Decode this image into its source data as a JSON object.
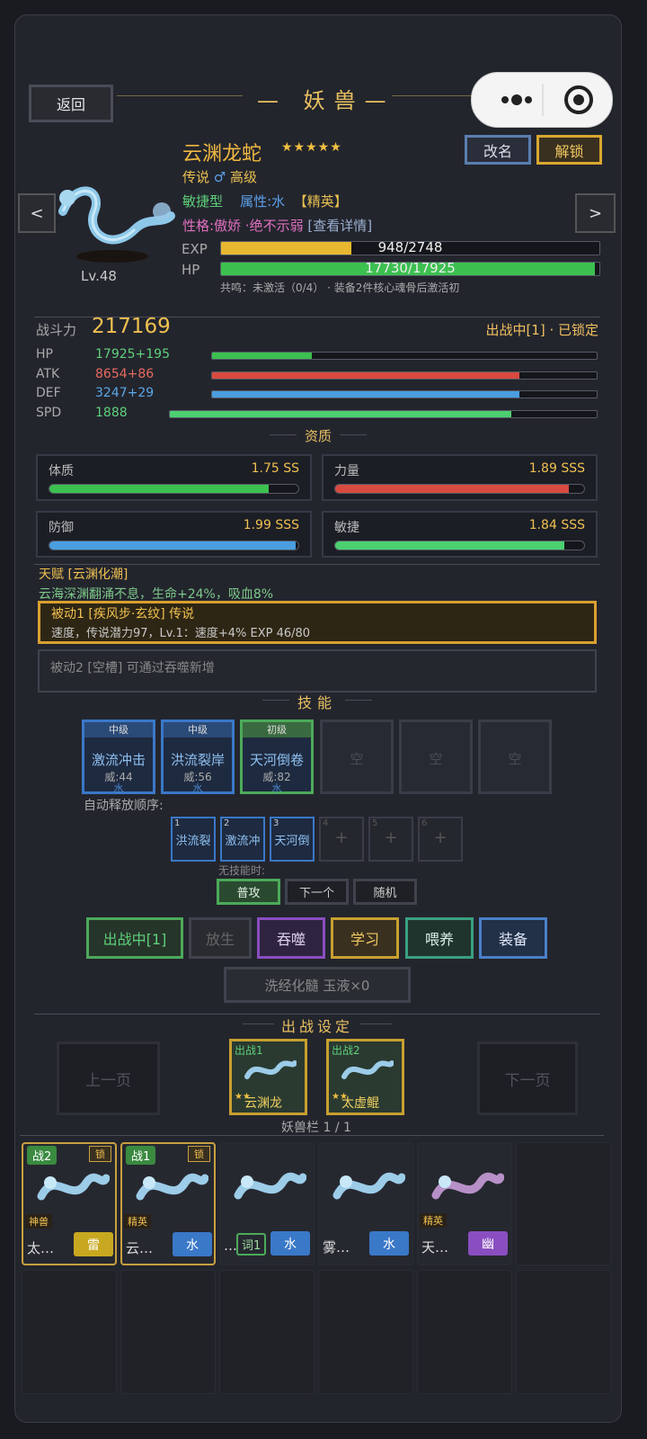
{
  "header": {
    "back": "返回",
    "title": "妖兽",
    "rename": "改名",
    "unlock": "解锁",
    "prev": "<",
    "next": ">"
  },
  "beast": {
    "name": "云渊龙蛇",
    "stars": "★★★★★",
    "rarity": "传说",
    "gender": "♂",
    "grade": "高级",
    "type": "敏捷型",
    "element": "属性:水",
    "rank": "【精英】",
    "personality": "性格:傲娇",
    "trait": "·绝不示弱",
    "details": "[查看详情]",
    "level": "Lv.48",
    "exp": {
      "label": "EXP",
      "text": "948/2748",
      "value": 948,
      "max": 2748
    },
    "hp": {
      "label": "HP",
      "text": "17730/17925",
      "value": 17730,
      "max": 17925
    },
    "resonance": "共鸣：未激活（0/4） · 装备2件核心魂骨后激活初"
  },
  "power": {
    "label": "战斗力",
    "value": 217169,
    "status": "出战中[1] · 已锁定"
  },
  "stats": [
    {
      "label": "HP",
      "value": "17925+195",
      "bar": 0.26
    },
    {
      "label": "ATK",
      "value": "8654+86",
      "bar": 0.8
    },
    {
      "label": "DEF",
      "value": "3247+29",
      "bar": 0.8
    },
    {
      "label": "SPD",
      "value": "1888",
      "bar": 0.8
    }
  ],
  "aptitude": {
    "title": "资质",
    "items": [
      {
        "label": "体质",
        "value": "1.75 SS",
        "bar": 0.88
      },
      {
        "label": "力量",
        "value": "1.89 SSS",
        "bar": 0.94
      },
      {
        "label": "防御",
        "value": "1.99 SSS",
        "bar": 0.99
      },
      {
        "label": "敏捷",
        "value": "1.84 SSS",
        "bar": 0.92
      }
    ]
  },
  "talent": {
    "title": "天赋 [云渊化潮]",
    "desc": "云海深渊翻涌不息，生命+24%，吸血8%"
  },
  "passives": [
    {
      "title": "被动1 [疾风步·玄纹] 传说",
      "desc": "速度，传说潜力97，Lv.1：速度+4%  EXP 46/80"
    },
    {
      "title": "被动2 [空槽]  可通过吞噬新增"
    }
  ],
  "skills": {
    "title": "技能",
    "slots": [
      {
        "grade": "中级",
        "name": "激流冲击",
        "power": "威:44",
        "element": "水"
      },
      {
        "grade": "中级",
        "name": "洪流裂岸",
        "power": "威:56",
        "element": "水"
      },
      {
        "grade": "初级",
        "name": "天河倒卷",
        "power": "威:82",
        "element": "水"
      }
    ],
    "empty": [
      "空",
      "空",
      "空"
    ],
    "order_label": "自动释放顺序:",
    "order": [
      {
        "index": 1,
        "name": "洪流裂"
      },
      {
        "index": 2,
        "name": "激流冲"
      },
      {
        "index": 3,
        "name": "天河倒"
      },
      {
        "index": 4,
        "name": "+"
      },
      {
        "index": 5,
        "name": "+"
      },
      {
        "index": 6,
        "name": "+"
      }
    ],
    "fallback_label": "无技能时:",
    "fallback": [
      "普攻",
      "下一个",
      "随机"
    ]
  },
  "actions": [
    "出战中[1]",
    "放生",
    "吞噬",
    "学习",
    "喂养",
    "装备"
  ],
  "refine": "洗经化髓  玉液×0",
  "lineup": {
    "title": "出战设定",
    "prev": "上一页",
    "next": "下一页",
    "slots": [
      {
        "tag": "出战1",
        "stars": "★★",
        "name": "云渊龙"
      },
      {
        "tag": "出战2",
        "stars": "★★",
        "name": "太虚鲲"
      }
    ]
  },
  "roster": {
    "title": "妖兽栏 1 / 1",
    "cards": [
      {
        "battle": "战2",
        "lock": "锁",
        "rank": "神兽",
        "name": "太…",
        "element": "雷"
      },
      {
        "battle": "战1",
        "lock": "锁",
        "rank": "精英",
        "name": "云…",
        "element": "水"
      },
      {
        "name": "…",
        "tag": "词1",
        "element": "水"
      },
      {
        "name": "雾…",
        "element": "水"
      },
      {
        "rank": "精英",
        "name": "天…",
        "element": "幽"
      }
    ]
  }
}
